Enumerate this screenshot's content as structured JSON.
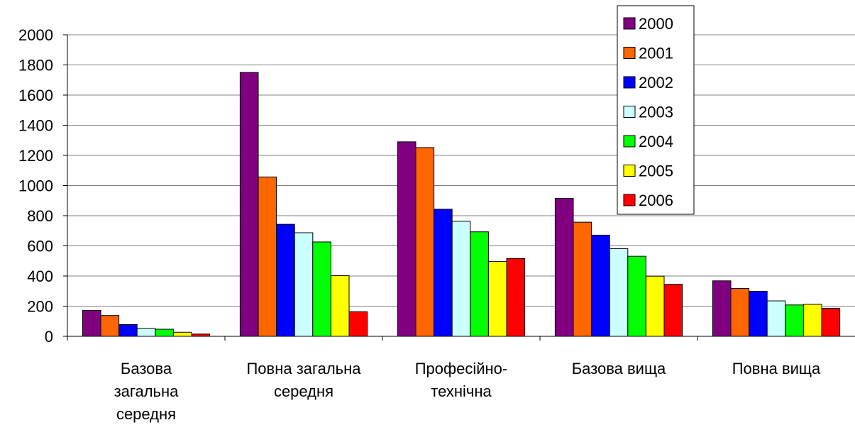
{
  "chart_data": {
    "type": "bar",
    "title": "",
    "xlabel": "",
    "ylabel": "",
    "ylim": [
      0,
      2000
    ],
    "yticks": [
      0,
      200,
      400,
      600,
      800,
      1000,
      1200,
      1400,
      1600,
      1800,
      2000
    ],
    "grid": true,
    "legend_position": "top-right",
    "categories": [
      [
        "Базова",
        "загальна",
        "середня"
      ],
      [
        "Повна загальна",
        "середня"
      ],
      [
        "Професійно-",
        "технічна"
      ],
      [
        "Базова вища"
      ],
      [
        "Повна вища"
      ]
    ],
    "series": [
      {
        "name": "2000",
        "color": "#800080",
        "values": [
          172,
          1750,
          1290,
          915,
          368
        ]
      },
      {
        "name": "2001",
        "color": "#FF6600",
        "values": [
          138,
          1057,
          1252,
          757,
          318
        ]
      },
      {
        "name": "2002",
        "color": "#0000FF",
        "values": [
          78,
          743,
          843,
          671,
          299
        ]
      },
      {
        "name": "2003",
        "color": "#CCFFFF",
        "values": [
          53,
          687,
          763,
          581,
          235
        ]
      },
      {
        "name": "2004",
        "color": "#00FF00",
        "values": [
          47,
          626,
          693,
          531,
          208
        ]
      },
      {
        "name": "2005",
        "color": "#FFFF00",
        "values": [
          27,
          402,
          497,
          399,
          212
        ]
      },
      {
        "name": "2006",
        "color": "#FF0000",
        "values": [
          15,
          163,
          516,
          345,
          186
        ]
      }
    ]
  }
}
